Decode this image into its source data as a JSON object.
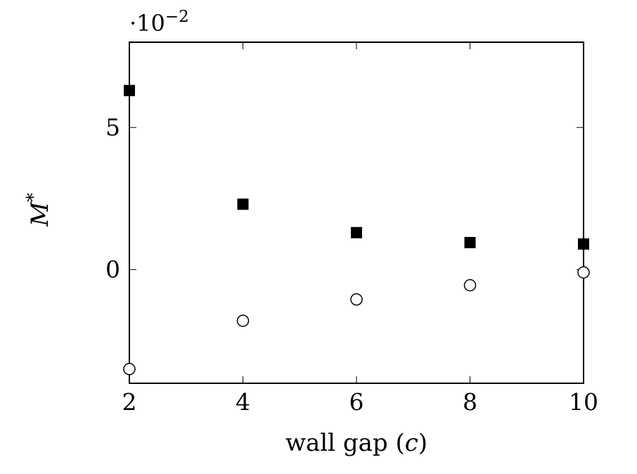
{
  "chart_data": {
    "type": "scatter",
    "title": "",
    "xlabel_text": "wall gap (",
    "xlabel_var": "c",
    "xlabel_close": ")",
    "ylabel_var": "M",
    "ylabel_sup": "*",
    "y_scale_prefix": "·10",
    "y_scale_exponent": "−2",
    "x_ticks": [
      "2",
      "4",
      "6",
      "8",
      "10"
    ],
    "x_tick_values": [
      2,
      4,
      6,
      8,
      10
    ],
    "y_ticks": [
      "0",
      "5"
    ],
    "y_tick_values": [
      0,
      5
    ],
    "xlim": [
      2,
      10
    ],
    "ylim": [
      -4,
      8
    ],
    "grid": false,
    "series": [
      {
        "marker": "filled-square",
        "color": "#000000",
        "x": [
          2,
          4,
          6,
          8,
          10
        ],
        "y": [
          6.3,
          2.3,
          1.3,
          0.95,
          0.9
        ]
      },
      {
        "marker": "open-circle",
        "color": "#000000",
        "x": [
          2,
          4,
          6,
          8,
          10
        ],
        "y": [
          -3.5,
          -1.8,
          -1.05,
          -0.55,
          -0.1
        ]
      }
    ]
  }
}
